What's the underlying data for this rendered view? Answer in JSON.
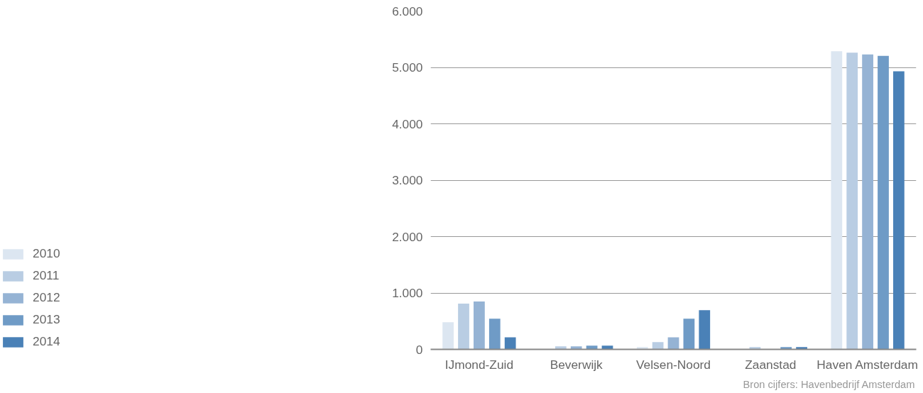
{
  "chart_data": {
    "type": "bar",
    "categories": [
      "IJmond-Zuid",
      "Beverwijk",
      "Velsen-Noord",
      "Zaanstad",
      "Haven Amsterdam"
    ],
    "series": [
      {
        "name": "2010",
        "color": "#dce6f1",
        "values": [
          480,
          0,
          40,
          0,
          5285
        ]
      },
      {
        "name": "2011",
        "color": "#b9cde3",
        "values": [
          810,
          55,
          130,
          40,
          5260
        ]
      },
      {
        "name": "2012",
        "color": "#95b3d4",
        "values": [
          850,
          55,
          215,
          0,
          5230
        ]
      },
      {
        "name": "2013",
        "color": "#6f9bc6",
        "values": [
          545,
          65,
          545,
          40,
          5205
        ]
      },
      {
        "name": "2014",
        "color": "#4a81b7",
        "values": [
          215,
          65,
          695,
          40,
          4930
        ]
      }
    ],
    "ylim": [
      0,
      6000
    ],
    "yticks": [
      0,
      {
        "value": 1000,
        "label": "1.000"
      },
      {
        "value": 2000,
        "label": "2.000"
      },
      {
        "value": 3000,
        "label": "3.000"
      },
      {
        "value": 4000,
        "label": "4.000"
      },
      {
        "value": 5000,
        "label": "5.000"
      },
      {
        "value": 6000,
        "label": "6.000"
      }
    ],
    "grid": "y",
    "legend": "left",
    "annotations": [
      "Bron cijfers: Havenbedrijf Amsterdam"
    ]
  }
}
